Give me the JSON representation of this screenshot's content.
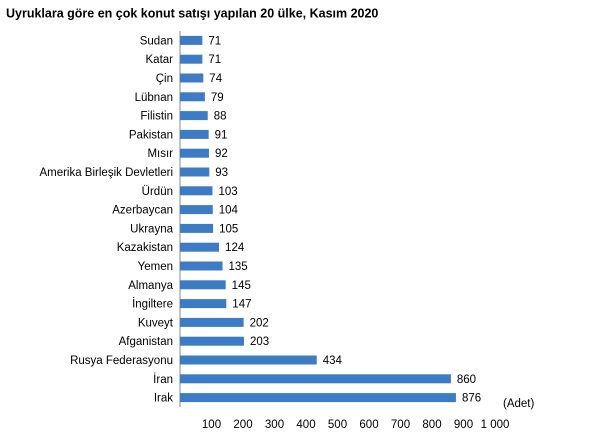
{
  "chart_data": {
    "type": "hbar",
    "title": "Uyruklara göre en çok konut satışı yapılan 20 ülke, Kasım 2020",
    "categories": [
      "Sudan",
      "Katar",
      "Çin",
      "Lübnan",
      "Filistin",
      "Pakistan",
      "Mısır",
      "Amerika Birleşik Devletleri",
      "Ürdün",
      "Azerbaycan",
      "Ukrayna",
      "Kazakistan",
      "Yemen",
      "Almanya",
      "İngiltere",
      "Kuveyt",
      "Afganistan",
      "Rusya Federasyonu",
      "İran",
      "Irak"
    ],
    "values": [
      71,
      71,
      74,
      79,
      88,
      91,
      92,
      93,
      103,
      104,
      105,
      124,
      135,
      145,
      147,
      202,
      203,
      434,
      860,
      876
    ],
    "color": "#3d7cc4",
    "xlim": [
      0,
      1000
    ],
    "xticks": [
      100,
      200,
      300,
      400,
      500,
      600,
      700,
      800,
      900,
      {
        "value": 1000,
        "label": "1 000"
      }
    ],
    "x_label": "(Adet)"
  }
}
